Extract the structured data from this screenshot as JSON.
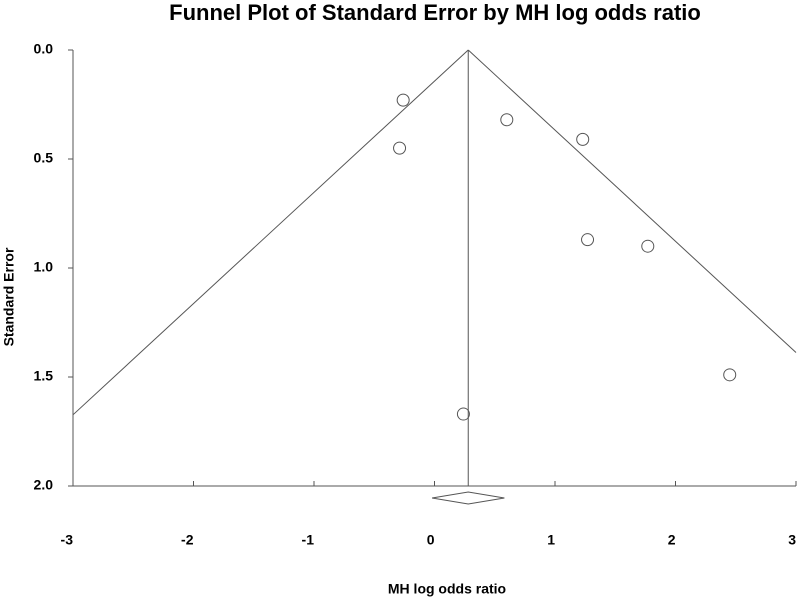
{
  "chart_data": {
    "type": "funnel",
    "title": "Funnel Plot of Standard Error by MH log odds ratio",
    "x_label": "MH log odds ratio",
    "y_label": "Standard Error",
    "x": [
      -0.26,
      -0.29,
      0.6,
      1.23,
      1.27,
      1.77,
      2.45,
      0.24
    ],
    "values": [
      0.23,
      0.45,
      0.32,
      0.41,
      0.87,
      0.9,
      1.49,
      1.67
    ],
    "summary": {
      "estimate": 0.28,
      "lower": -0.02,
      "upper": 0.58
    },
    "funnel_z": 1.96,
    "xlim": [
      -3,
      3
    ],
    "xticks": [
      -3,
      -2,
      -1,
      0,
      1,
      2,
      3
    ],
    "ylim": [
      2,
      0
    ],
    "yticks": [
      {
        "value": 0,
        "label": "0.0"
      },
      0.5,
      {
        "value": 1,
        "label": "1.0"
      },
      1.5,
      {
        "value": 2,
        "label": "2.0"
      }
    ],
    "color": "#555555"
  }
}
